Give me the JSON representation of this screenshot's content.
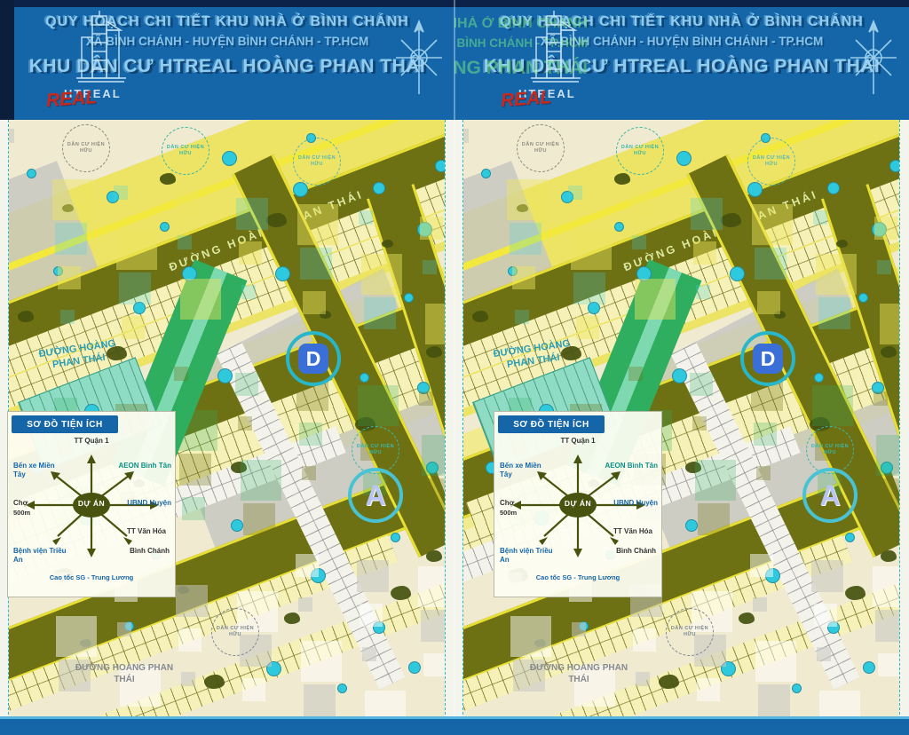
{
  "header": {
    "title_line1": "QUY HOẠCH CHI TIẾT KHU NHÀ Ở BÌNH CHÁNH",
    "title_line2": "XÃ BÌNH CHÁNH - HUYỆN BÌNH CHÁNH - TP.HCM",
    "title_line3": "KHU DÂN CƯ HTREAL HOÀNG PHAN THÁI",
    "logo_brand": "HTREAL",
    "logo_accent": "REAL"
  },
  "map": {
    "road_label_main": "ĐƯỜNG HOÀNG PHAN THÁI",
    "road_label_secondary": "ĐƯỜNG HOÀNG PHAN THÁI",
    "zone_label": "DÂN CƯ HIỆN HỮU",
    "letter_d": "D",
    "letter_a": "A"
  },
  "inset": {
    "title": "SƠ ĐỒ TIỆN ÍCH",
    "center_label": "DỰ ÁN",
    "landmarks": {
      "north": "TT Quận 1",
      "northwest": "Bến xe Miền Tây",
      "northeast": "AEON Bình Tân",
      "west": "Chợ",
      "west_distance": "500m",
      "east": "UBND Huyện",
      "center_right": "TT Văn Hóa",
      "southwest": "Bệnh viện Triều An",
      "southeast": "Bình Chánh",
      "south": "Cao tốc SG - Trung Lương"
    }
  },
  "colors": {
    "header_blue": "#1566a9",
    "title_text": "#8ecdf0",
    "accent_red": "#c9281e",
    "map_cream": "#f0ead0",
    "lot_yellow": "#eee65e",
    "road_olive": "#6e7113",
    "road_edge_yellow": "#e8df35",
    "tree_teal": "#2fc9dd",
    "park_green": "#2fae5f",
    "ring_teal": "#2ab6c9"
  }
}
